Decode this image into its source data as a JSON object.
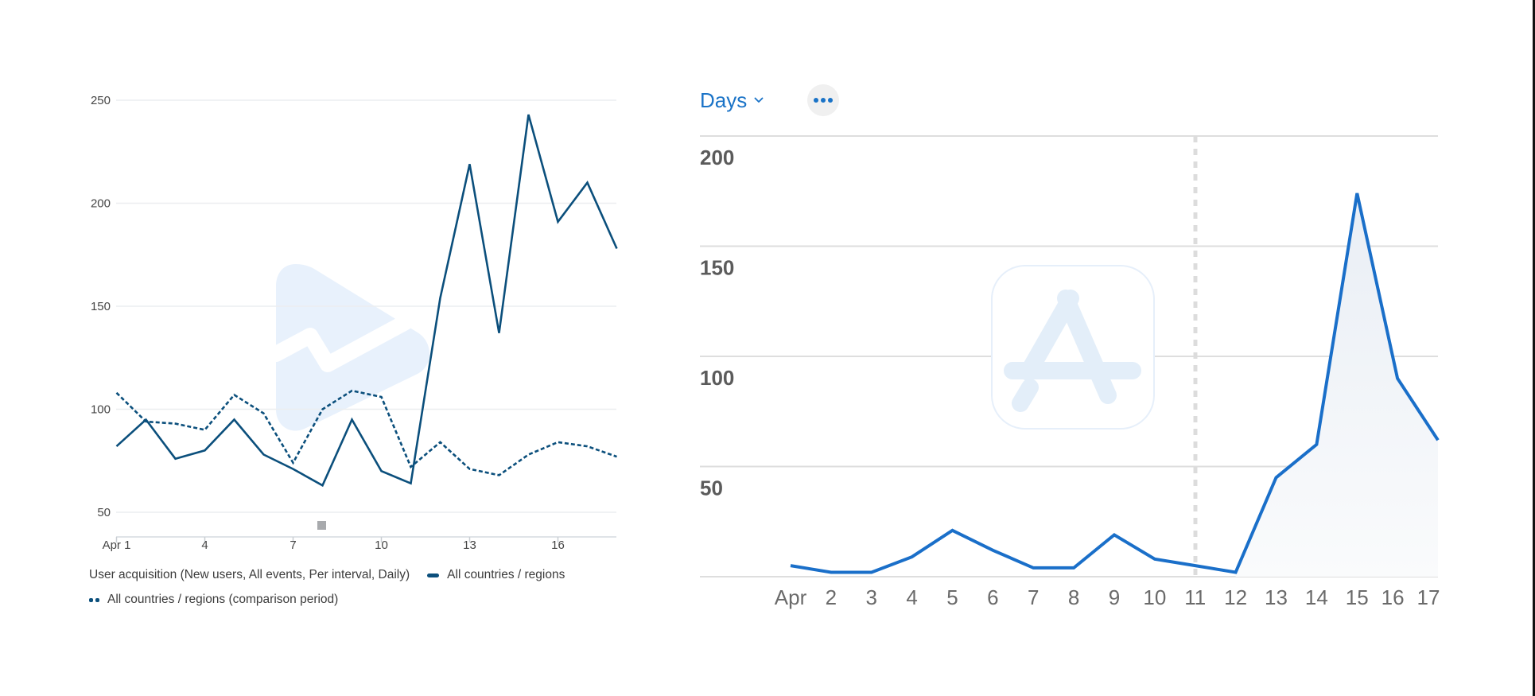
{
  "left_chart": {
    "y_ticks": [
      "250",
      "200",
      "150",
      "100",
      "50"
    ],
    "x_ticks": [
      "Apr 1",
      "4",
      "7",
      "10",
      "13",
      "16"
    ],
    "legend": {
      "metric_label": "User acquisition (New users, All events, Per interval, Daily)",
      "series_primary": "All countries / regions",
      "series_comparison": "All countries / regions (comparison period)"
    },
    "line_color": "#0b4f7c",
    "watermark_icon": "google-play-console-icon"
  },
  "right_chart": {
    "period_dropdown": {
      "label": "Days",
      "icon": "chevron-down-icon"
    },
    "more_button_icon": "ellipsis-icon",
    "y_ticks": [
      "200",
      "150",
      "100",
      "50"
    ],
    "x_ticks": [
      "Apr",
      "2",
      "3",
      "4",
      "5",
      "6",
      "7",
      "8",
      "9",
      "10",
      "11",
      "12",
      "13",
      "14",
      "15",
      "16",
      "17"
    ],
    "line_color": "#1a6fc9",
    "accent_color": "#1a73c7",
    "watermark_icon": "app-store-icon"
  },
  "chart_data": [
    {
      "type": "line",
      "title": "User acquisition (New users, All events, Per interval, Daily)",
      "xlabel": "",
      "ylabel": "",
      "x": [
        "Apr 1",
        "Apr 2",
        "Apr 3",
        "Apr 4",
        "Apr 5",
        "Apr 6",
        "Apr 7",
        "Apr 8",
        "Apr 9",
        "Apr 10",
        "Apr 11",
        "Apr 12",
        "Apr 13",
        "Apr 14",
        "Apr 15",
        "Apr 16",
        "Apr 17",
        "Apr 18"
      ],
      "series": [
        {
          "name": "All countries / regions",
          "style": "solid",
          "values": [
            82,
            95,
            76,
            80,
            95,
            78,
            71,
            63,
            95,
            70,
            64,
            154,
            219,
            137,
            243,
            191,
            210,
            178
          ]
        },
        {
          "name": "All countries / regions (comparison period)",
          "style": "dashed",
          "values": [
            108,
            94,
            93,
            90,
            107,
            98,
            74,
            100,
            109,
            106,
            72,
            84,
            71,
            68,
            78,
            84,
            82,
            77
          ]
        }
      ],
      "ylim": [
        38,
        250
      ],
      "yticks": [
        50,
        100,
        150,
        200,
        250
      ],
      "xticks": [
        "Apr 1",
        "4",
        "7",
        "10",
        "13",
        "16"
      ],
      "grid": true,
      "legend_position": "bottom"
    },
    {
      "type": "area",
      "title": "",
      "xlabel": "",
      "ylabel": "",
      "x": [
        "Apr",
        "2",
        "3",
        "4",
        "5",
        "6",
        "7",
        "8",
        "9",
        "10",
        "11",
        "12",
        "13",
        "14",
        "15",
        "16",
        "17"
      ],
      "series": [
        {
          "name": "Days",
          "values": [
            5,
            2,
            2,
            9,
            21,
            12,
            4,
            4,
            19,
            8,
            5,
            2,
            45,
            60,
            174,
            90,
            62
          ]
        }
      ],
      "ylim": [
        0,
        200
      ],
      "yticks": [
        50,
        100,
        150,
        200
      ],
      "grid": true,
      "annotations": [
        {
          "type": "vertical-dashed-line",
          "x": "11"
        }
      ],
      "legend_position": "none"
    }
  ]
}
